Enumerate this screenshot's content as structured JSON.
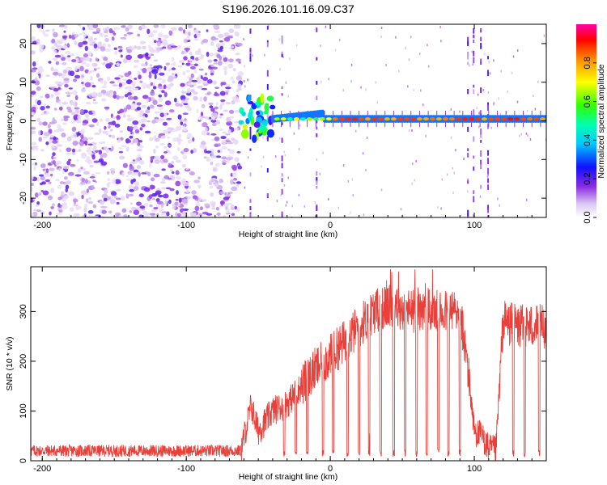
{
  "chart_data": [
    {
      "type": "heatmap",
      "title": "S196.2026.101.16.09.C37",
      "xlabel": "Height of straight line (km)",
      "ylabel": "Frequency (Hz)",
      "xlim": [
        -208,
        150
      ],
      "ylim": [
        -25,
        25
      ],
      "xticks": [
        -200,
        -100,
        0,
        100
      ],
      "yticks": [
        -20,
        -10,
        0,
        10,
        20
      ],
      "colorbar": {
        "label": "Normalized spectral amplitude",
        "range": [
          0,
          1
        ],
        "ticks": [
          0.0,
          0.2,
          0.4,
          0.6,
          0.8
        ],
        "tick_labels": [
          "0.0",
          "0.2",
          "0.4",
          "0.6",
          "0.8"
        ],
        "colormap": "rainbow (white-purple-blue-cyan-green-yellow-red-magenta)"
      },
      "regions": [
        {
          "name": "noise",
          "x_range": [
            -208,
            -62
          ],
          "description": "scattered low-amplitude speckle across all frequencies"
        },
        {
          "name": "onset",
          "x_range": [
            -62,
            -40
          ],
          "frequency_hz": [
            -5,
            6
          ],
          "amplitude": 0.5
        },
        {
          "name": "carrier",
          "x_range": [
            -40,
            150
          ],
          "frequency_hz": 0.5,
          "amplitude": 0.85
        },
        {
          "name": "spurious_band",
          "x_range": [
            93,
            112
          ],
          "description": "vertical streaks of noise"
        }
      ]
    },
    {
      "type": "line",
      "title": "",
      "xlabel": "Height of straight line (km)",
      "ylabel": "SNR (10 * v/v)",
      "xlim": [
        -208,
        150
      ],
      "ylim": [
        0,
        390
      ],
      "xticks": [
        -200,
        -100,
        0,
        100
      ],
      "yticks": [
        0,
        100,
        200,
        300
      ],
      "color": "#e8403a",
      "series": [
        {
          "name": "SNR",
          "x": [
            -208,
            -150,
            -100,
            -62,
            -55,
            -50,
            -40,
            -30,
            -20,
            -10,
            0,
            10,
            20,
            30,
            40,
            50,
            60,
            70,
            80,
            90,
            95,
            100,
            105,
            110,
            115,
            120,
            130,
            140,
            150
          ],
          "values": [
            20,
            20,
            20,
            20,
            110,
            60,
            100,
            115,
            150,
            185,
            210,
            240,
            270,
            300,
            310,
            305,
            300,
            300,
            300,
            300,
            200,
            60,
            50,
            25,
            20,
            280,
            270,
            270,
            270
          ]
        }
      ],
      "dips_x": [
        -32,
        -24,
        -16,
        -5,
        2,
        12,
        20,
        27,
        35,
        44,
        52,
        60,
        67,
        75,
        82,
        90,
        127,
        135,
        145
      ],
      "peak_value": 385
    }
  ]
}
